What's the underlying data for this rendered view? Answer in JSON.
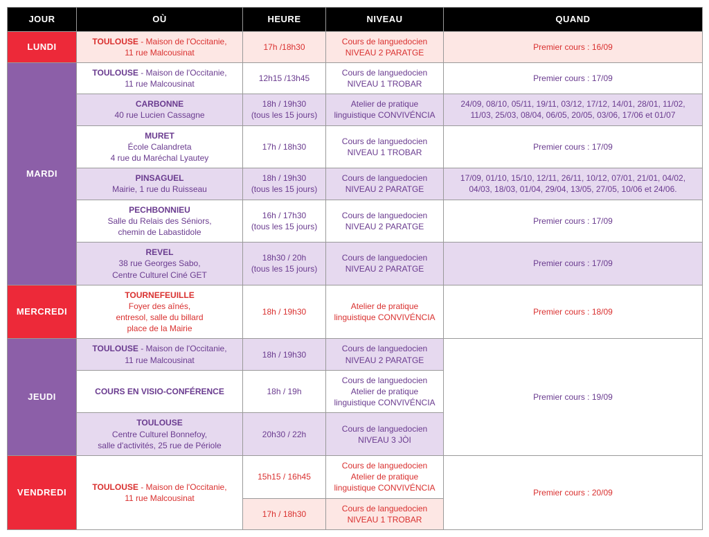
{
  "colors": {
    "header_bg": "#000000",
    "header_fg": "#ffffff",
    "red": "#ed2939",
    "purple": "#8c5fa8",
    "purple_text": "#6a3b8f",
    "red_text": "#d9302f",
    "pink_tint": "#fde7e4",
    "lilac_tint": "#e6d9ef",
    "white": "#ffffff"
  },
  "headers": {
    "jour": "JOUR",
    "ou": "OÙ",
    "heure": "HEURE",
    "niveau": "NIVEAU",
    "quand": "QUAND"
  },
  "days": [
    {
      "label": "LUNDI",
      "day_bg": "red",
      "text_color": "red_text",
      "rows": [
        {
          "bg": "pink_tint",
          "ou_strong": "TOULOUSE",
          "ou_rest": " - Maison de l'Occitanie,\n11 rue Malcousinat",
          "heure": "17h /18h30",
          "niveau": "Cours de languedocien\nNIVEAU 2 PARATGE",
          "quand": "Premier cours : 16/09"
        }
      ]
    },
    {
      "label": "MARDI",
      "day_bg": "purple",
      "text_color": "purple_text",
      "rows": [
        {
          "bg": "white",
          "ou_strong": "TOULOUSE",
          "ou_rest": " - Maison de l'Occitanie,\n11 rue Malcousinat",
          "heure": "12h15 /13h45",
          "niveau": "Cours de languedocien\nNIVEAU 1 TROBAR",
          "quand": "Premier cours : 17/09"
        },
        {
          "bg": "lilac_tint",
          "ou_strong": "CARBONNE",
          "ou_rest": "\n40 rue Lucien Cassagne",
          "heure": "18h / 19h30\n(tous les 15 jours)",
          "niveau": "Atelier de pratique\nlinguistique CONVIVÉNCIA",
          "quand": "24/09, 08/10, 05/11, 19/11, 03/12, 17/12, 14/01, 28/01, 11/02,\n11/03, 25/03, 08/04, 06/05, 20/05, 03/06, 17/06 et 01/07"
        },
        {
          "bg": "white",
          "ou_strong": "MURET",
          "ou_rest": "\nÉcole Calandreta\n4 rue du Maréchal Lyautey",
          "heure": "17h / 18h30",
          "niveau": "Cours de languedocien\nNIVEAU 1 TROBAR",
          "quand": "Premier cours : 17/09"
        },
        {
          "bg": "lilac_tint",
          "ou_strong": "PINSAGUEL",
          "ou_rest": "\nMairie, 1 rue du Ruisseau",
          "heure": "18h / 19h30\n(tous les 15 jours)",
          "niveau": "Cours de languedocien\nNIVEAU 2 PARATGE",
          "quand": "17/09, 01/10, 15/10, 12/11, 26/11, 10/12, 07/01, 21/01, 04/02,\n04/03, 18/03, 01/04, 29/04, 13/05, 27/05, 10/06 et 24/06."
        },
        {
          "bg": "white",
          "ou_strong": "PECHBONNIEU",
          "ou_rest": "\nSalle du Relais des Séniors,\nchemin de Labastidole",
          "heure": "16h / 17h30\n(tous les 15 jours)",
          "niveau": "Cours de languedocien\nNIVEAU 2 PARATGE",
          "quand": "Premier cours : 17/09"
        },
        {
          "bg": "lilac_tint",
          "ou_strong": "REVEL",
          "ou_rest": "\n38 rue Georges Sabo,\nCentre Culturel Ciné GET",
          "heure": "18h30 / 20h\n(tous les 15 jours)",
          "niveau": "Cours de languedocien\nNIVEAU 2 PARATGE",
          "quand": "Premier cours : 17/09"
        }
      ]
    },
    {
      "label": "MERCREDI",
      "day_bg": "red",
      "text_color": "red_text",
      "rows": [
        {
          "bg": "white",
          "ou_strong": "TOURNEFEUILLE",
          "ou_rest": "\nFoyer des aînés,\nentresol, salle du billard\nplace de la Mairie",
          "heure": "18h / 19h30",
          "niveau": "Atelier de pratique\nlinguistique CONVIVÉNCIA",
          "quand": "Premier cours : 18/09"
        }
      ]
    },
    {
      "label": "JEUDI",
      "day_bg": "purple",
      "text_color": "purple_text",
      "quand_merged": "Premier cours : 19/09",
      "rows": [
        {
          "bg": "lilac_tint",
          "ou_strong": "TOULOUSE",
          "ou_rest": " - Maison de l'Occitanie,\n11 rue Malcousinat",
          "heure": "18h / 19h30",
          "niveau": "Cours de languedocien\nNIVEAU 2 PARATGE"
        },
        {
          "bg": "white",
          "ou_strong": "COURS EN VISIO-CONFÉRENCE",
          "ou_rest": "",
          "heure": "18h / 19h",
          "niveau": "Cours de languedocien\nAtelier de pratique\nlinguistique CONVIVÉNCIA"
        },
        {
          "bg": "lilac_tint",
          "ou_strong": "TOULOUSE",
          "ou_rest": "\nCentre Culturel Bonnefoy,\nsalle d'activités, 25 rue de Périole",
          "heure": "20h30 / 22h",
          "niveau": "Cours de languedocien\nNIVEAU 3 JÒI"
        }
      ]
    },
    {
      "label": "VENDREDI",
      "day_bg": "red",
      "text_color": "red_text",
      "ou_merged_strong": "TOULOUSE",
      "ou_merged_rest": " - Maison de l'Occitanie,\n11 rue Malcousinat",
      "quand_merged": "Premier cours : 20/09",
      "rows": [
        {
          "bg": "white",
          "heure": "15h15 / 16h45",
          "niveau": "Cours de languedocien\nAtelier de pratique\nlinguistique CONVIVÉNCIA"
        },
        {
          "bg": "pink_tint",
          "heure": "17h / 18h30",
          "niveau": "Cours de languedocien\nNIVEAU 1 TROBAR"
        }
      ]
    }
  ]
}
